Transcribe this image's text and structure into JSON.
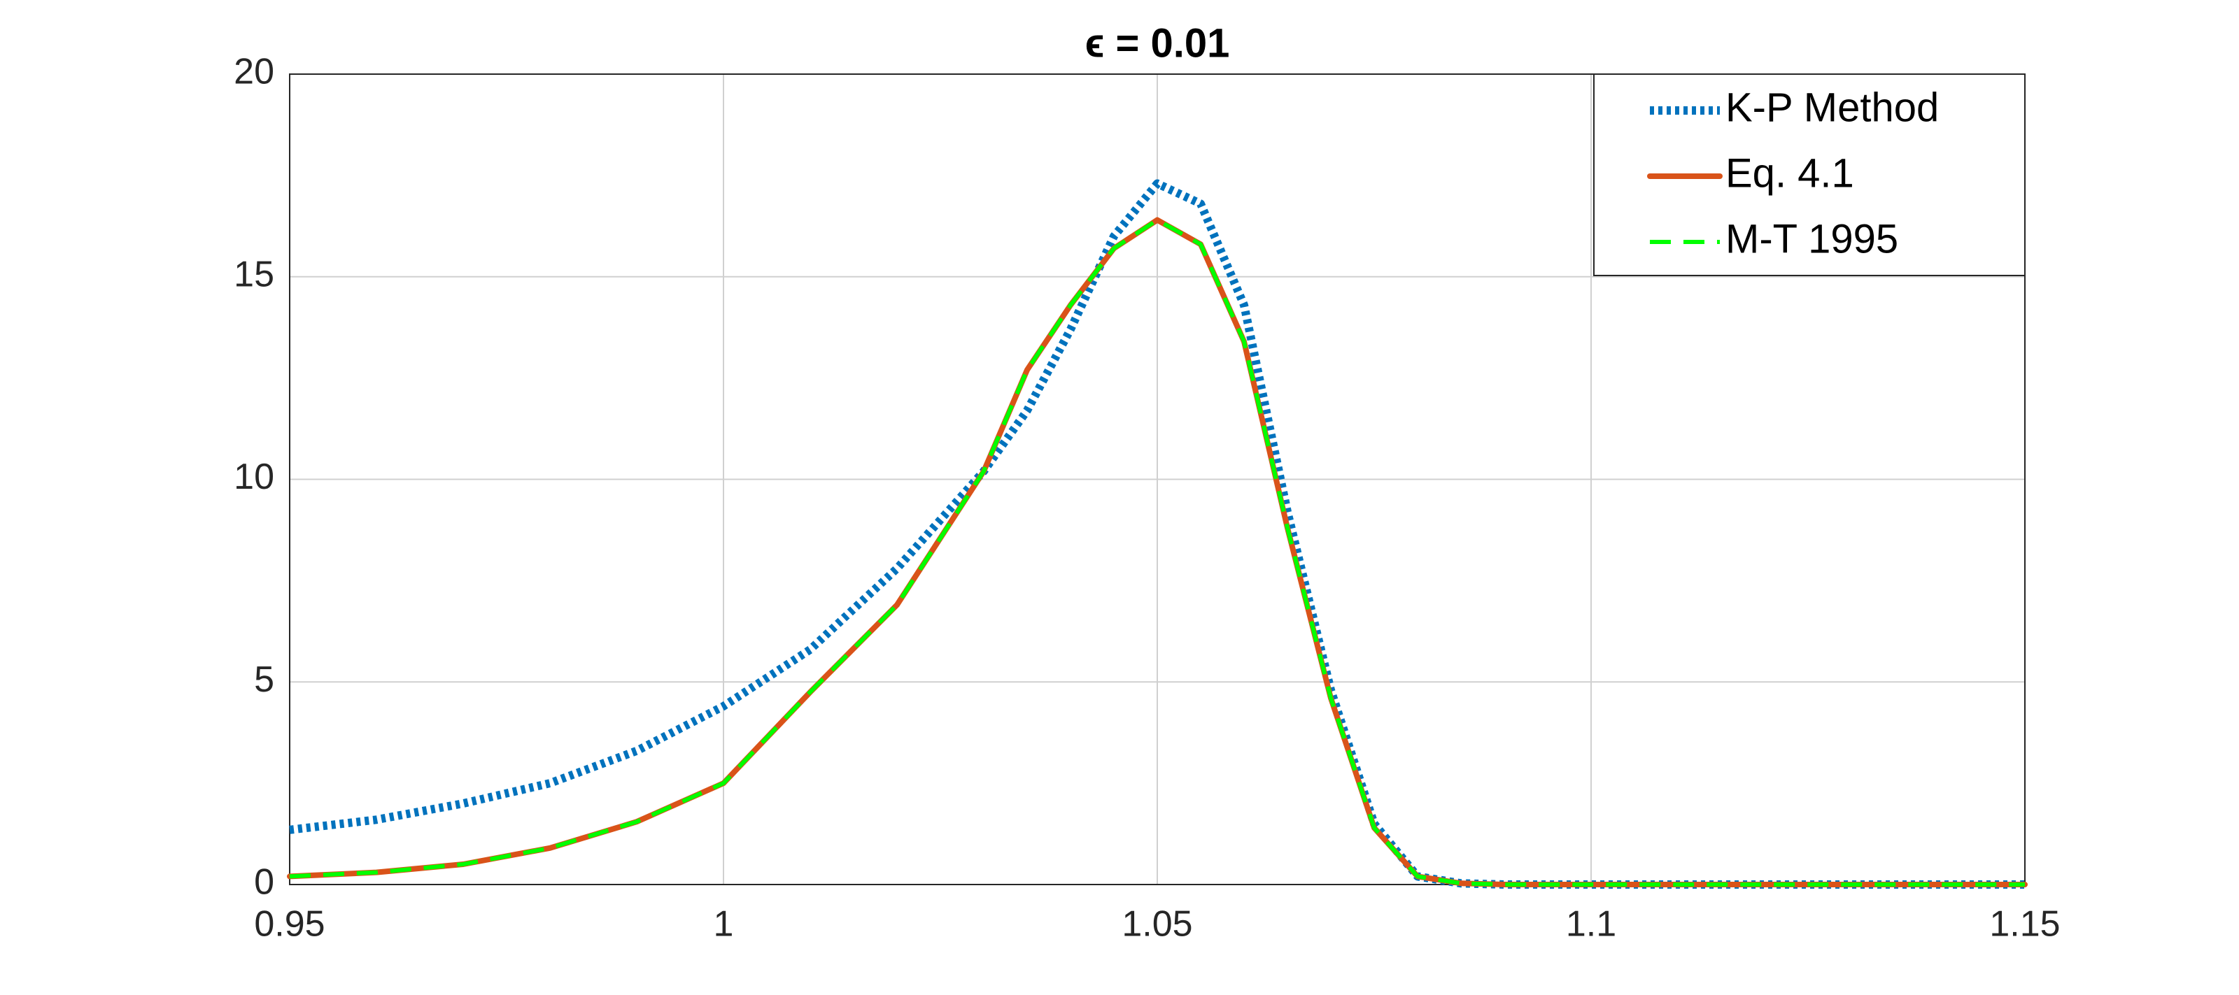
{
  "chart_data": {
    "type": "line",
    "title": "ϵ = 0.01",
    "x": [
      0.95,
      0.96,
      0.97,
      0.98,
      0.99,
      1.0,
      1.01,
      1.02,
      1.03,
      1.035,
      1.04,
      1.045,
      1.05,
      1.055,
      1.06,
      1.065,
      1.07,
      1.075,
      1.08,
      1.085,
      1.09,
      1.1,
      1.15
    ],
    "series": [
      {
        "name": "K-P Method",
        "color": "#0072bd",
        "style": "dotted",
        "values": [
          1.35,
          1.6,
          2.0,
          2.5,
          3.3,
          4.4,
          5.8,
          7.8,
          10.2,
          11.7,
          13.7,
          16.0,
          17.3,
          16.8,
          14.3,
          9.2,
          4.8,
          1.5,
          0.2,
          0.03,
          0,
          0,
          0
        ]
      },
      {
        "name": "Eq. 4.1",
        "color": "#d95319",
        "style": "solid",
        "values": [
          0.2,
          0.3,
          0.5,
          0.9,
          1.55,
          2.5,
          4.75,
          6.9,
          10.2,
          12.7,
          14.3,
          15.7,
          16.4,
          15.8,
          13.4,
          8.8,
          4.6,
          1.4,
          0.2,
          0.03,
          0,
          0,
          0
        ]
      },
      {
        "name": "M-T 1995",
        "color": "#00ff00",
        "style": "dashed",
        "values": [
          0.2,
          0.3,
          0.5,
          0.9,
          1.55,
          2.5,
          4.75,
          6.9,
          10.2,
          12.7,
          14.3,
          15.7,
          16.4,
          15.8,
          13.4,
          8.8,
          4.6,
          1.4,
          0.2,
          0.03,
          0,
          0,
          0
        ]
      }
    ],
    "xlim": [
      0.95,
      1.15
    ],
    "xticks": [
      0.95,
      1,
      1.05,
      1.1,
      1.15
    ],
    "ylim": [
      0,
      20
    ],
    "yticks": [
      0,
      5,
      10,
      15,
      20
    ],
    "grid": true,
    "legend": "top-right"
  }
}
